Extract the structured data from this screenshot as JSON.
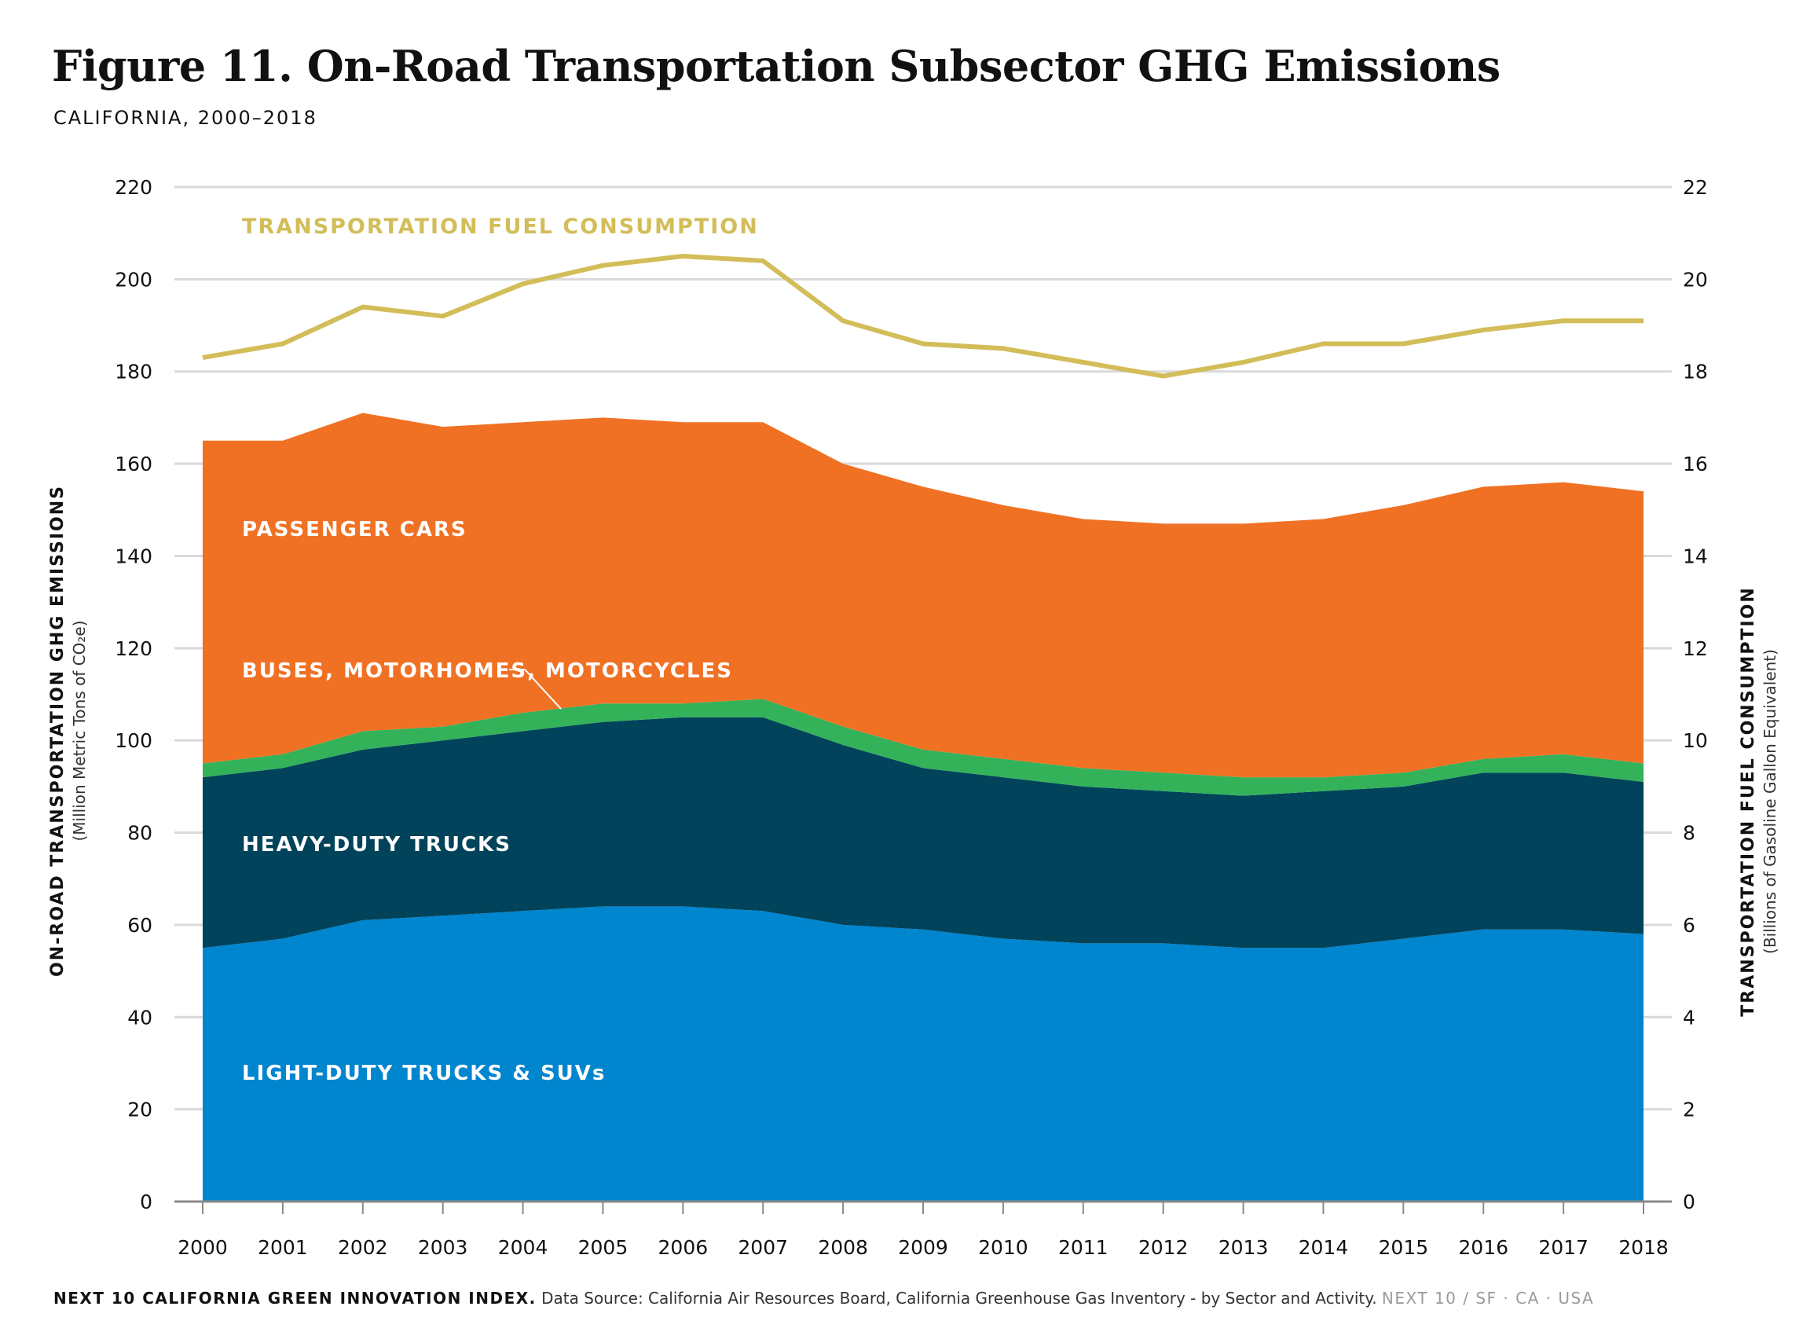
{
  "header": {
    "title": "Figure 11. On-Road Transportation Subsector GHG Emissions",
    "subtitle": "CALIFORNIA, 2000–2018"
  },
  "footer": {
    "index": "NEXT 10 CALIFORNIA GREEN INNOVATION INDEX.",
    "source": "Data Source: California Air Resources Board, California Greenhouse Gas Inventory - by Sector and Activity.",
    "brand": "NEXT 10  /  SF · CA · USA"
  },
  "colors": {
    "light_duty": "#0085CF",
    "heavy_duty": "#00435A",
    "buses": "#33B25A",
    "passenger": "#F07124",
    "fuel_line": "#D2BD59",
    "grid": "#D9D9D9"
  },
  "chart_data": {
    "type": "area",
    "x": [
      2000,
      2001,
      2002,
      2003,
      2004,
      2005,
      2006,
      2007,
      2008,
      2009,
      2010,
      2011,
      2012,
      2013,
      2014,
      2015,
      2016,
      2017,
      2018
    ],
    "x_tick_labels": [
      "2000",
      "2001",
      "2002",
      "2003",
      "2004",
      "2005",
      "2006",
      "2007",
      "2008",
      "2009",
      "2010",
      "2011",
      "2012",
      "2013",
      "2014",
      "2015",
      "2016",
      "2017",
      "2018"
    ],
    "ylabel": "ON-ROAD TRANSPORTATION GHG EMISSIONS",
    "ylabel_sub": "(Million Metric Tons of CO₂e)",
    "ylim": [
      0,
      220
    ],
    "y_ticks": [
      0,
      20,
      40,
      60,
      80,
      100,
      120,
      140,
      160,
      180,
      200,
      220
    ],
    "y2label": "TRANSPORTATION FUEL CONSUMPTION",
    "y2label_sub": "(Billions of Gasoline Gallon Equivalent)",
    "y2lim": [
      0,
      22
    ],
    "y2_ticks": [
      0,
      2,
      4,
      6,
      8,
      10,
      12,
      14,
      16,
      18,
      20,
      22
    ],
    "grid": true,
    "stacked": true,
    "series": [
      {
        "name": "LIGHT-DUTY TRUCKS & SUVs",
        "color_key": "light_duty",
        "values": [
          55,
          57,
          61,
          62,
          63,
          64,
          64,
          63,
          60,
          59,
          57,
          56,
          56,
          55,
          55,
          57,
          59,
          59,
          58
        ]
      },
      {
        "name": "HEAVY-DUTY TRUCKS",
        "color_key": "heavy_duty",
        "values": [
          37,
          37,
          37,
          38,
          39,
          40,
          41,
          42,
          39,
          35,
          35,
          34,
          33,
          33,
          34,
          33,
          34,
          34,
          33
        ]
      },
      {
        "name": "BUSES, MOTORHOMES, MOTORCYCLES",
        "color_key": "buses",
        "values": [
          3,
          3,
          4,
          3,
          4,
          4,
          3,
          4,
          4,
          4,
          4,
          4,
          4,
          4,
          3,
          3,
          3,
          4,
          4
        ]
      },
      {
        "name": "PASSENGER CARS",
        "color_key": "passenger",
        "values": [
          70,
          68,
          69,
          65,
          63,
          62,
          61,
          60,
          57,
          57,
          55,
          54,
          54,
          55,
          56,
          58,
          59,
          59,
          59
        ]
      }
    ],
    "line_series": {
      "name": "TRANSPORTATION FUEL CONSUMPTION",
      "axis": "right",
      "color_key": "fuel_line",
      "values": [
        18.3,
        18.6,
        19.4,
        19.2,
        19.9,
        20.3,
        20.5,
        20.4,
        19.1,
        18.6,
        18.5,
        18.2,
        17.9,
        18.2,
        18.6,
        18.6,
        18.9,
        19.1,
        19.1
      ]
    }
  }
}
